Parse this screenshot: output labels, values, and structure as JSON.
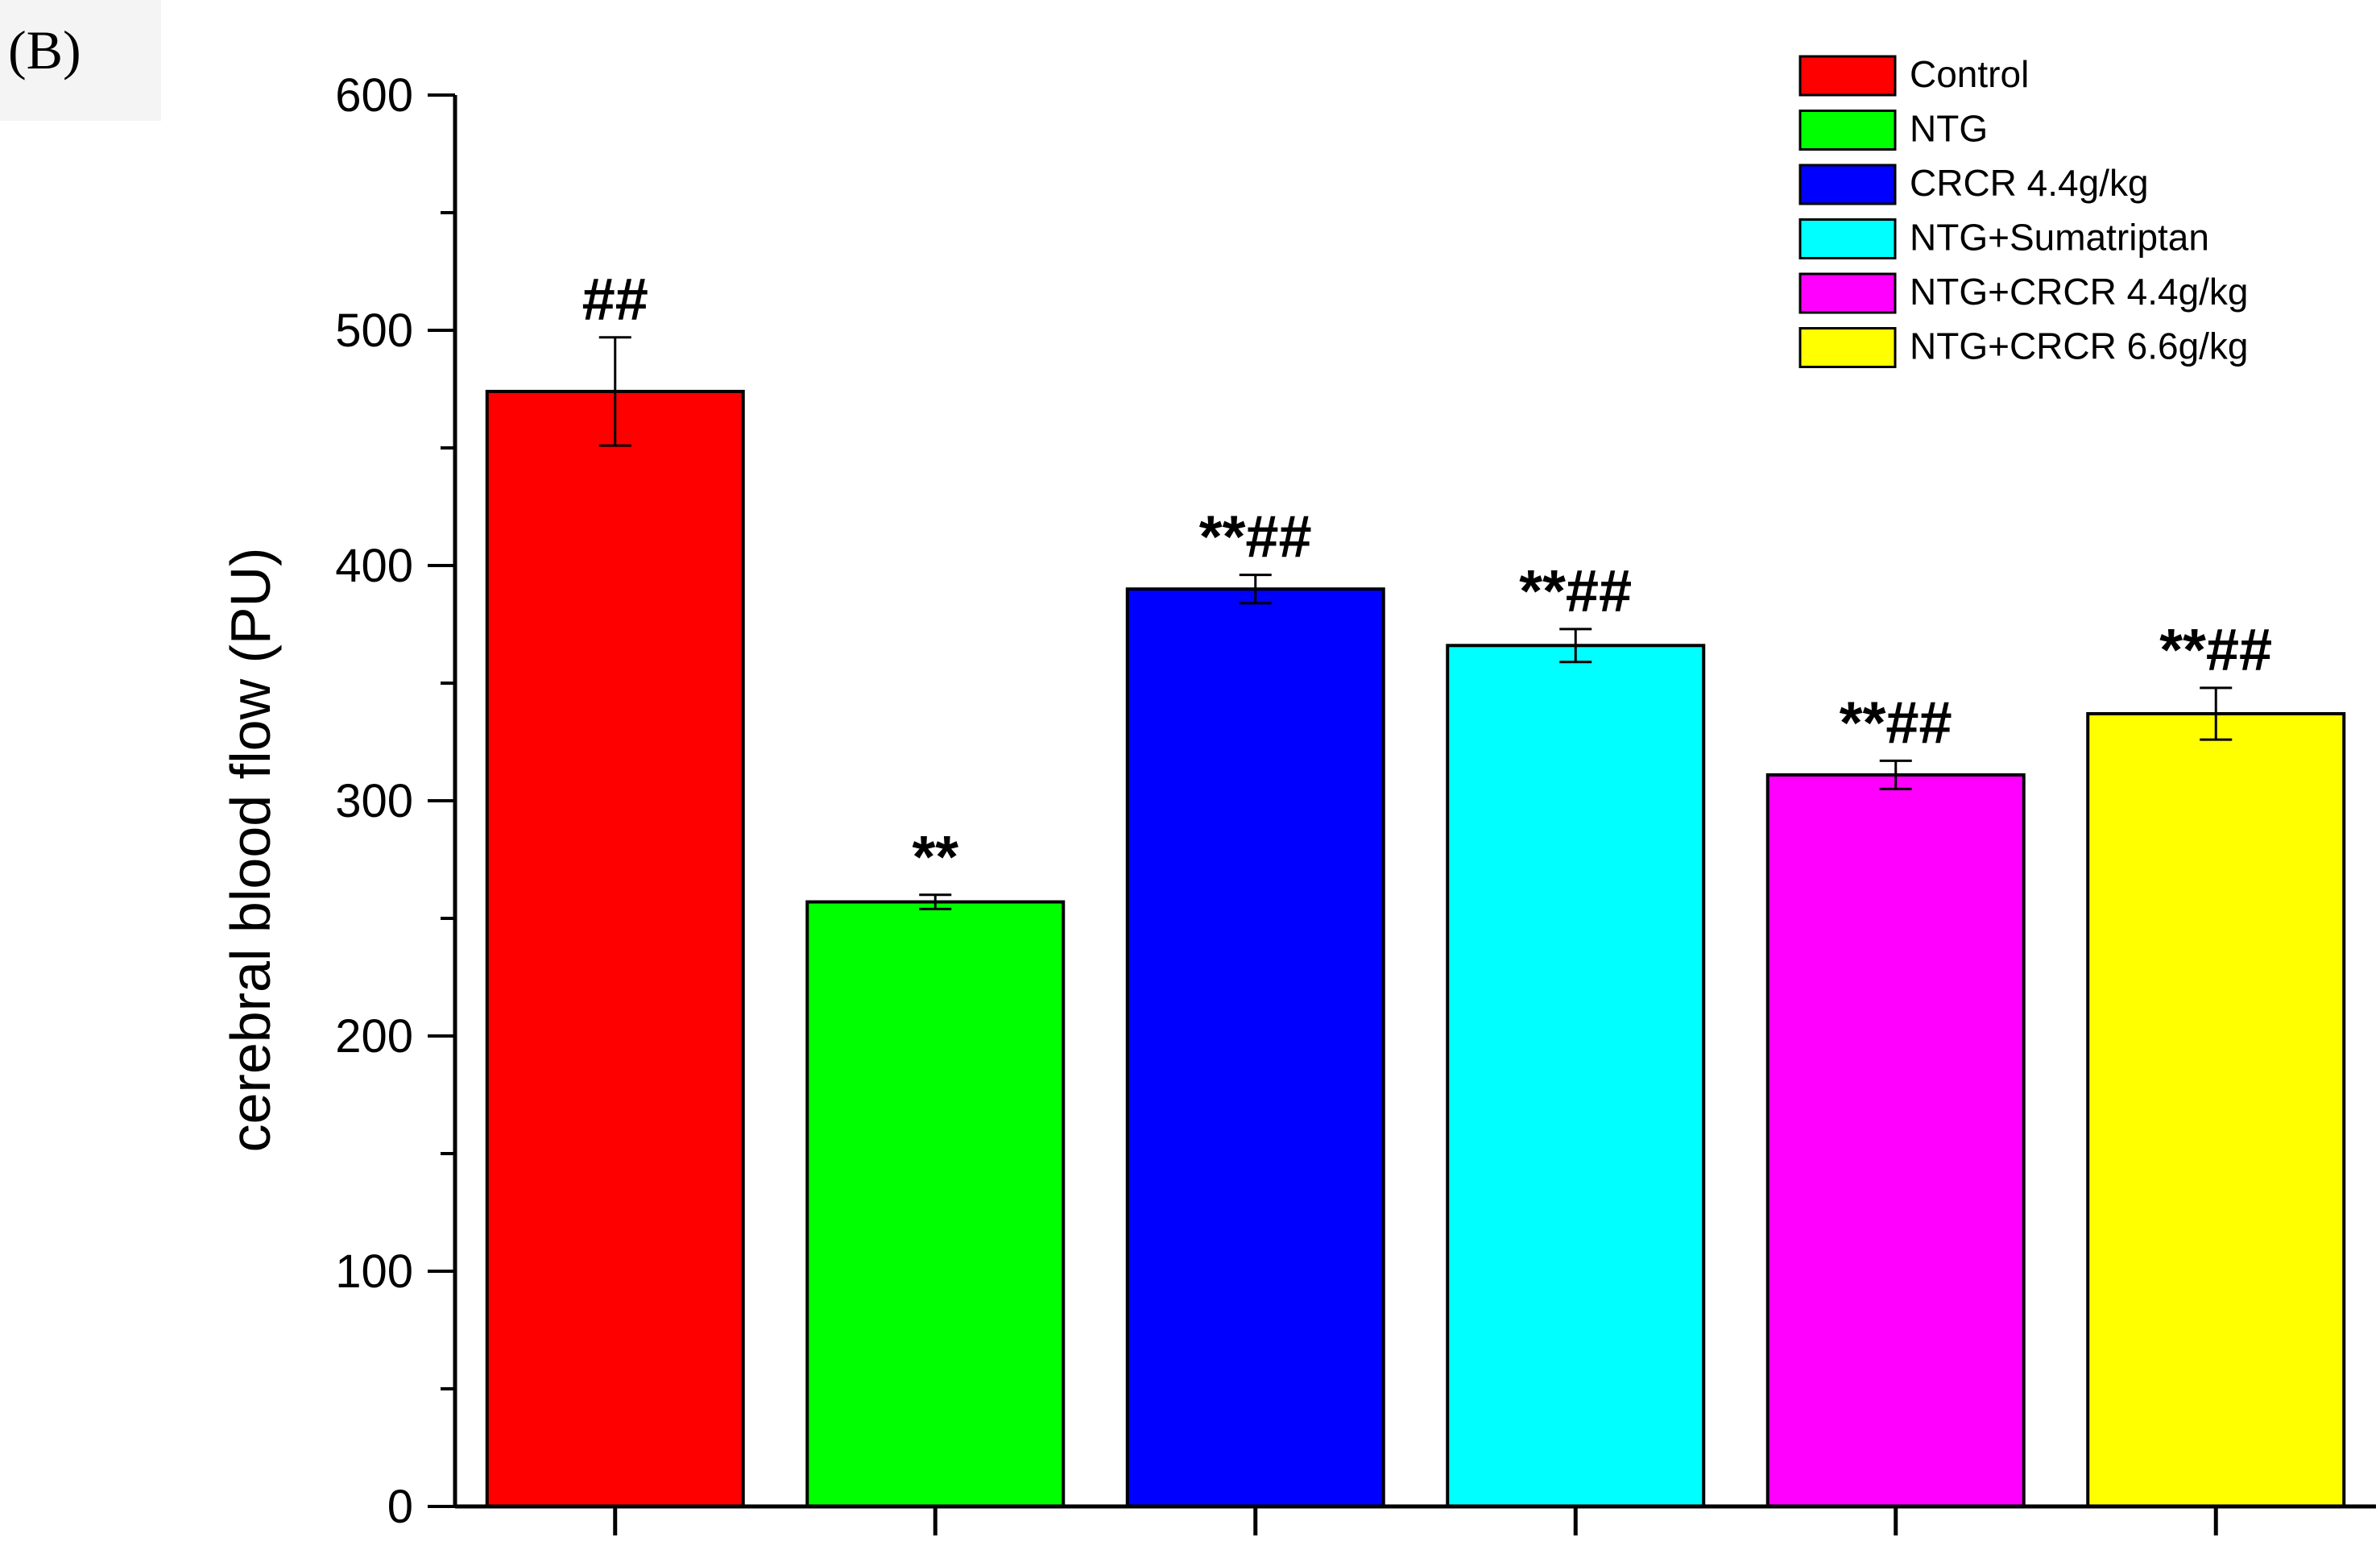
{
  "figure": {
    "panel_label": "(B)"
  },
  "chart_data": {
    "type": "bar",
    "title": "",
    "xlabel": "",
    "ylabel": "cerebral blood flow (PU)",
    "ylim": [
      0,
      600
    ],
    "yticks": [
      0,
      100,
      200,
      300,
      400,
      500,
      600
    ],
    "grid": false,
    "legend_position": "top-right",
    "categories": [
      "Control",
      "NTG",
      "CRCR 4.4g/kg",
      "NTG+Sumatriptan",
      "NTG+CRCR  4.4g/kg",
      "NTG+CRCR  6.6g/kg"
    ],
    "values": [
      474,
      257,
      390,
      366,
      311,
      337
    ],
    "errors": [
      23,
      3,
      6,
      7,
      6,
      11
    ],
    "colors": [
      "#ff0000",
      "#00ff00",
      "#0000ff",
      "#00ffff",
      "#ff00ff",
      "#ffff00"
    ],
    "significance": [
      "##",
      "**",
      "**##",
      "**##",
      "**##",
      "**##"
    ]
  }
}
